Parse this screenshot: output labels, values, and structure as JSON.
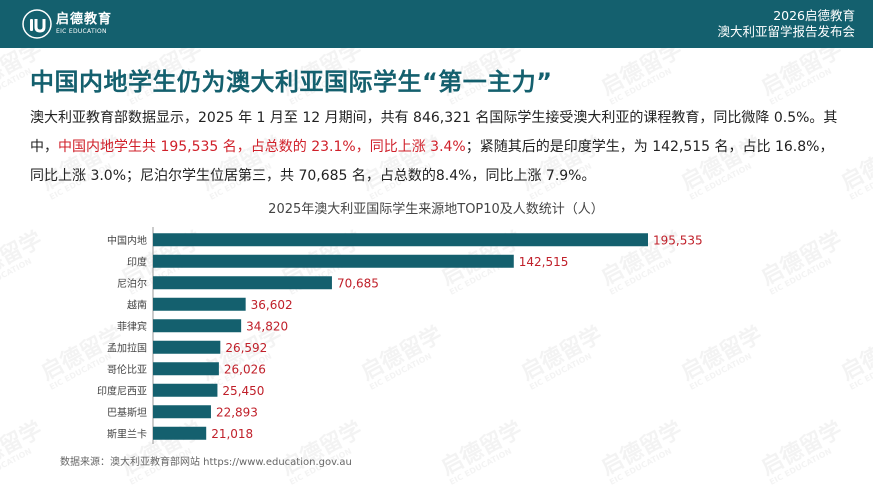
{
  "header": {
    "logo": {
      "cn": "启德教育",
      "en": "EIC EDUCATION"
    },
    "line1": "2026启德教育",
    "line2": "澳大利亚留学报告发布会"
  },
  "watermark": {
    "cn": "启德留学",
    "en": "EIC EDUCATION"
  },
  "title": "中国内地学生仍为澳大利亚国际学生“第一主力”",
  "paragraph": {
    "p1": "澳大利亚教育部数据显示，2025 年 1 月至 12 月期间，共有 846,321 名国际学生接受澳大利亚的课程教育，同比微降 0.5%。其中，",
    "highlight": "中国内地学生共 195,535 名，占总数的 23.1%，同比上涨 3.4%",
    "p2": "；紧随其后的是印度学生，为 142,515 名，占比 16.8%，同比上涨 3.0%；尼泊尔学生位居第三，共 70,685 名，占总数的8.4%，同比上涨 7.9%。"
  },
  "chart_data": {
    "type": "bar",
    "orientation": "horizontal",
    "title": "2025年澳大利亚国际学生来源地TOP10及人数统计（人）",
    "categories": [
      "中国内地",
      "印度",
      "尼泊尔",
      "越南",
      "菲律宾",
      "孟加拉国",
      "哥伦比亚",
      "印度尼西亚",
      "巴基斯坦",
      "斯里兰卡"
    ],
    "values": [
      195535,
      142515,
      70685,
      36602,
      34820,
      26592,
      26026,
      25450,
      22893,
      21018
    ],
    "value_labels": [
      "195,535",
      "142,515",
      "70,685",
      "36,602",
      "34,820",
      "26,592",
      "26,026",
      "25,450",
      "22,893",
      "21,018"
    ],
    "xlim": [
      0,
      195535
    ],
    "grid": false,
    "legend": "none",
    "bar_color": "#14606e",
    "label_color": "#c0202a"
  },
  "source": "数据来源：澳大利亚教育部网站 https://www.education.gov.au"
}
